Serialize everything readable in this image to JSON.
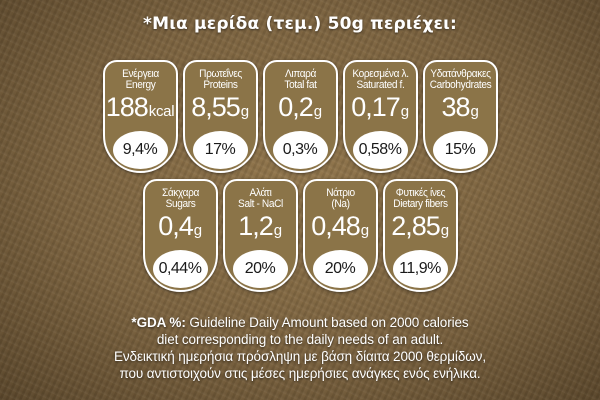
{
  "header": {
    "title": "*Μια μερίδα (τεμ.) 50g περιέχει:"
  },
  "colors": {
    "card": "#8b7448",
    "border": "#ffffff",
    "text": "#ffffff"
  },
  "row1": [
    {
      "name_gr": "Ενέργεια",
      "name_en": "Energy",
      "value": "188",
      "unit": "kcal",
      "gda": "9,4%"
    },
    {
      "name_gr": "Πρωτεΐνες",
      "name_en": "Proteins",
      "value": "8,55",
      "unit": "g",
      "gda": "17%"
    },
    {
      "name_gr": "Λιπαρά",
      "name_en": "Total fat",
      "value": "0,2",
      "unit": "g",
      "gda": "0,3%"
    },
    {
      "name_gr": "Κορεσμένα λ.",
      "name_en": "Saturated f.",
      "value": "0,17",
      "unit": "g",
      "gda": "0,58%"
    },
    {
      "name_gr": "Υδατάνθρακες",
      "name_en": "Carbohydrates",
      "value": "38",
      "unit": "g",
      "gda": "15%"
    }
  ],
  "row2": [
    {
      "name_gr": "Σάκχαρα",
      "name_en": "Sugars",
      "value": "0,4",
      "unit": "g",
      "gda": "0,44%"
    },
    {
      "name_gr": "Αλάτι",
      "name_en": "Salt - NaCl",
      "value": "1,2",
      "unit": "g",
      "gda": "20%"
    },
    {
      "name_gr": "Νάτριο",
      "name_en": "(Na)",
      "value": "0,48",
      "unit": "g",
      "gda": "20%"
    },
    {
      "name_gr": "Φυτικές ίνες",
      "name_en": "Dietary fibers",
      "value": "2,85",
      "unit": "g",
      "gda": "11,9%"
    }
  ],
  "footer": {
    "prefix": "*GDA %:",
    "line1": "Guideline Daily Amount based on 2000 calories",
    "line2": "diet corresponding to the daily needs of an adult.",
    "line3": "Ενδεικτική ημερήσια πρόσληψη με βάση δίαιτα 2000 θερμίδων,",
    "line4": "που αντιστοιχούν στις μέσες ημερήσιες ανάγκες ενός ενήλικα."
  }
}
